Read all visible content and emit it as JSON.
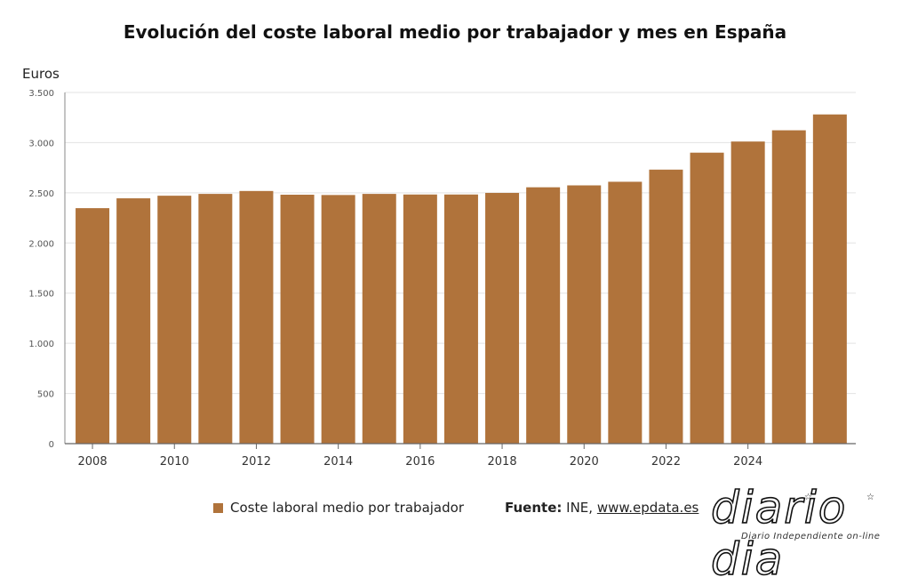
{
  "title": "Evolución del coste laboral medio por trabajador y mes en España",
  "y_unit": "Euros",
  "legend": {
    "label": "Coste laboral medio por trabajador"
  },
  "source": {
    "label": "Fuente:",
    "text": "INE,",
    "link": "www.epdata.es"
  },
  "logo": {
    "word": "diario dia",
    "tagline": "Diario Independiente on-line"
  },
  "colors": {
    "bar": "#b0733b",
    "grid": "#e3e3e3",
    "axis": "#555555"
  },
  "chart_data": {
    "type": "bar",
    "title": "Evolución del coste laboral medio por trabajador y mes en España",
    "ylabel": "Euros",
    "xlabel": "",
    "categories": [
      "2008",
      "2009",
      "2010",
      "2011",
      "2012",
      "2013",
      "2014",
      "2015",
      "2016",
      "2017",
      "2018",
      "2019",
      "2020",
      "2021",
      "2022",
      "2023",
      "2024",
      "2025",
      "2026"
    ],
    "series": [
      {
        "name": "Coste laboral medio por trabajador",
        "values": [
          2347,
          2445,
          2471,
          2489,
          2518,
          2481,
          2478,
          2489,
          2483,
          2483,
          2499,
          2555,
          2574,
          2610,
          2731,
          2900,
          3011,
          3123,
          3281
        ]
      }
    ],
    "ylim": [
      0,
      3500
    ],
    "yticks": [
      0,
      500,
      1000,
      1500,
      2000,
      2500,
      3000,
      3500
    ],
    "ytick_labels": [
      "0",
      "500",
      "1.000",
      "1.500",
      "2.000",
      "2.500",
      "3.000",
      "3.500"
    ],
    "xtick_labels": [
      "2008",
      "2010",
      "2012",
      "2014",
      "2016",
      "2018",
      "2020",
      "2022",
      "2024"
    ],
    "grid": true,
    "legend_position": "bottom-left"
  }
}
